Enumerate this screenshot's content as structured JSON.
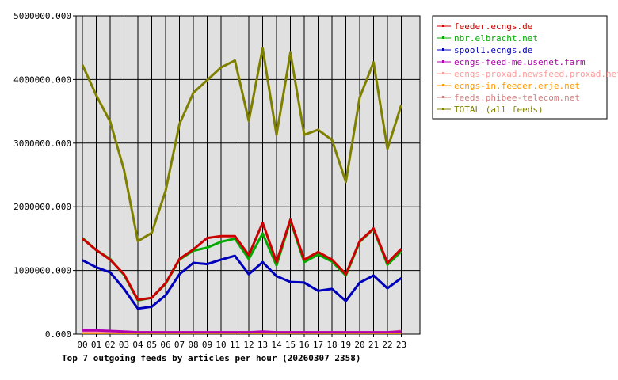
{
  "chart_data": {
    "type": "line",
    "title": "Top 7 outgoing feeds by articles per hour (20260307 2358)",
    "xlabel": "",
    "ylabel": "",
    "x": [
      "00",
      "01",
      "02",
      "03",
      "04",
      "05",
      "06",
      "07",
      "08",
      "09",
      "10",
      "11",
      "12",
      "13",
      "14",
      "15",
      "16",
      "17",
      "18",
      "19",
      "20",
      "21",
      "22",
      "23"
    ],
    "y_ticks": [
      "0.000",
      "1000000.000",
      "2000000.000",
      "3000000.000",
      "4000000.000",
      "5000000.000"
    ],
    "ylim": [
      0,
      5000000
    ],
    "grid": true,
    "legend_position": "right",
    "plot_background": "#e0e0e0",
    "series": [
      {
        "name": "feeder.ecngs.de",
        "color": "#cc0000",
        "values": [
          1500000,
          1320000,
          1170000,
          940000,
          540000,
          570000,
          800000,
          1180000,
          1330000,
          1510000,
          1540000,
          1540000,
          1240000,
          1750000,
          1130000,
          1800000,
          1170000,
          1290000,
          1170000,
          940000,
          1460000,
          1660000,
          1120000,
          1340000
        ]
      },
      {
        "name": "nbr.elbracht.net",
        "color": "#00aa00",
        "values": [
          1510000,
          1320000,
          1180000,
          930000,
          530000,
          570000,
          790000,
          1170000,
          1310000,
          1360000,
          1450000,
          1500000,
          1180000,
          1580000,
          1080000,
          1780000,
          1130000,
          1250000,
          1140000,
          920000,
          1450000,
          1650000,
          1090000,
          1300000
        ]
      },
      {
        "name": "spool1.ecngs.de",
        "color": "#0000bb",
        "values": [
          1160000,
          1050000,
          970000,
          710000,
          400000,
          430000,
          610000,
          940000,
          1120000,
          1100000,
          1170000,
          1230000,
          940000,
          1130000,
          910000,
          820000,
          810000,
          680000,
          710000,
          520000,
          810000,
          920000,
          720000,
          880000
        ]
      },
      {
        "name": "ecngs-feed-me.usenet.farm",
        "color": "#b000b0",
        "values": [
          60000,
          60000,
          50000,
          40000,
          30000,
          30000,
          30000,
          30000,
          30000,
          30000,
          30000,
          30000,
          30000,
          40000,
          30000,
          30000,
          30000,
          30000,
          30000,
          30000,
          30000,
          30000,
          30000,
          40000
        ]
      },
      {
        "name": "ecngs-proxad.newsfeed.proxad.net",
        "color": "#ff9999",
        "values": [
          30000,
          30000,
          30000,
          30000,
          30000,
          30000,
          30000,
          30000,
          30000,
          30000,
          30000,
          30000,
          30000,
          30000,
          30000,
          30000,
          30000,
          30000,
          30000,
          30000,
          30000,
          30000,
          30000,
          40000
        ]
      },
      {
        "name": "ecngs-in.feeder.erje.net",
        "color": "#ff9900",
        "values": [
          20000,
          20000,
          20000,
          20000,
          20000,
          20000,
          20000,
          20000,
          20000,
          20000,
          20000,
          20000,
          20000,
          20000,
          20000,
          20000,
          20000,
          20000,
          20000,
          20000,
          20000,
          20000,
          20000,
          20000
        ]
      },
      {
        "name": "feeds.phibee-telecom.net",
        "color": "#d08080",
        "values": [
          40000,
          40000,
          40000,
          30000,
          30000,
          30000,
          30000,
          30000,
          30000,
          30000,
          30000,
          30000,
          30000,
          30000,
          30000,
          30000,
          30000,
          30000,
          30000,
          30000,
          30000,
          30000,
          30000,
          50000
        ]
      },
      {
        "name": "TOTAL (all feeds)",
        "color": "#808000",
        "values": [
          4230000,
          3750000,
          3340000,
          2580000,
          1460000,
          1590000,
          2250000,
          3300000,
          3790000,
          3990000,
          4190000,
          4300000,
          3350000,
          4490000,
          3130000,
          4420000,
          3130000,
          3210000,
          3050000,
          2390000,
          3720000,
          4270000,
          2910000,
          3600000
        ]
      }
    ]
  }
}
